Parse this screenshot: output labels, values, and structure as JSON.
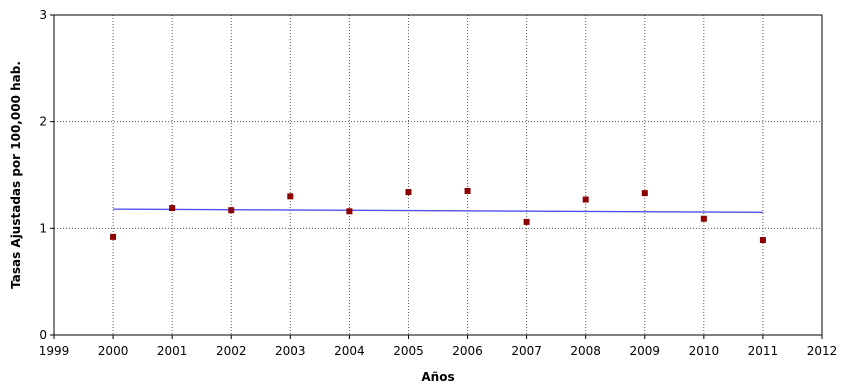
{
  "chart_data": {
    "type": "scatter",
    "title": "",
    "xlabel": "Años",
    "ylabel": "Tasas Ajustadas por 100,000 hab.",
    "xlim": [
      1999,
      2012
    ],
    "ylim": [
      0,
      3
    ],
    "x_ticks": [
      "1999",
      "2000",
      "2001",
      "2002",
      "2003",
      "2004",
      "2005",
      "2006",
      "2007",
      "2008",
      "2009",
      "2010",
      "2011",
      "2012"
    ],
    "y_ticks": [
      "0",
      "1",
      "2",
      "3"
    ],
    "grid": true,
    "series": [
      {
        "kind": "points",
        "color": "#8b0000",
        "x": [
          2000,
          2001,
          2002,
          2003,
          2004,
          2005,
          2006,
          2007,
          2008,
          2009,
          2010,
          2011
        ],
        "y": [
          0.92,
          1.19,
          1.17,
          1.3,
          1.16,
          1.34,
          1.35,
          1.06,
          1.27,
          1.33,
          1.09,
          0.89
        ]
      },
      {
        "kind": "trend",
        "color": "#5050ee",
        "x": [
          2000,
          2011
        ],
        "y": [
          1.18,
          1.15
        ]
      }
    ]
  }
}
